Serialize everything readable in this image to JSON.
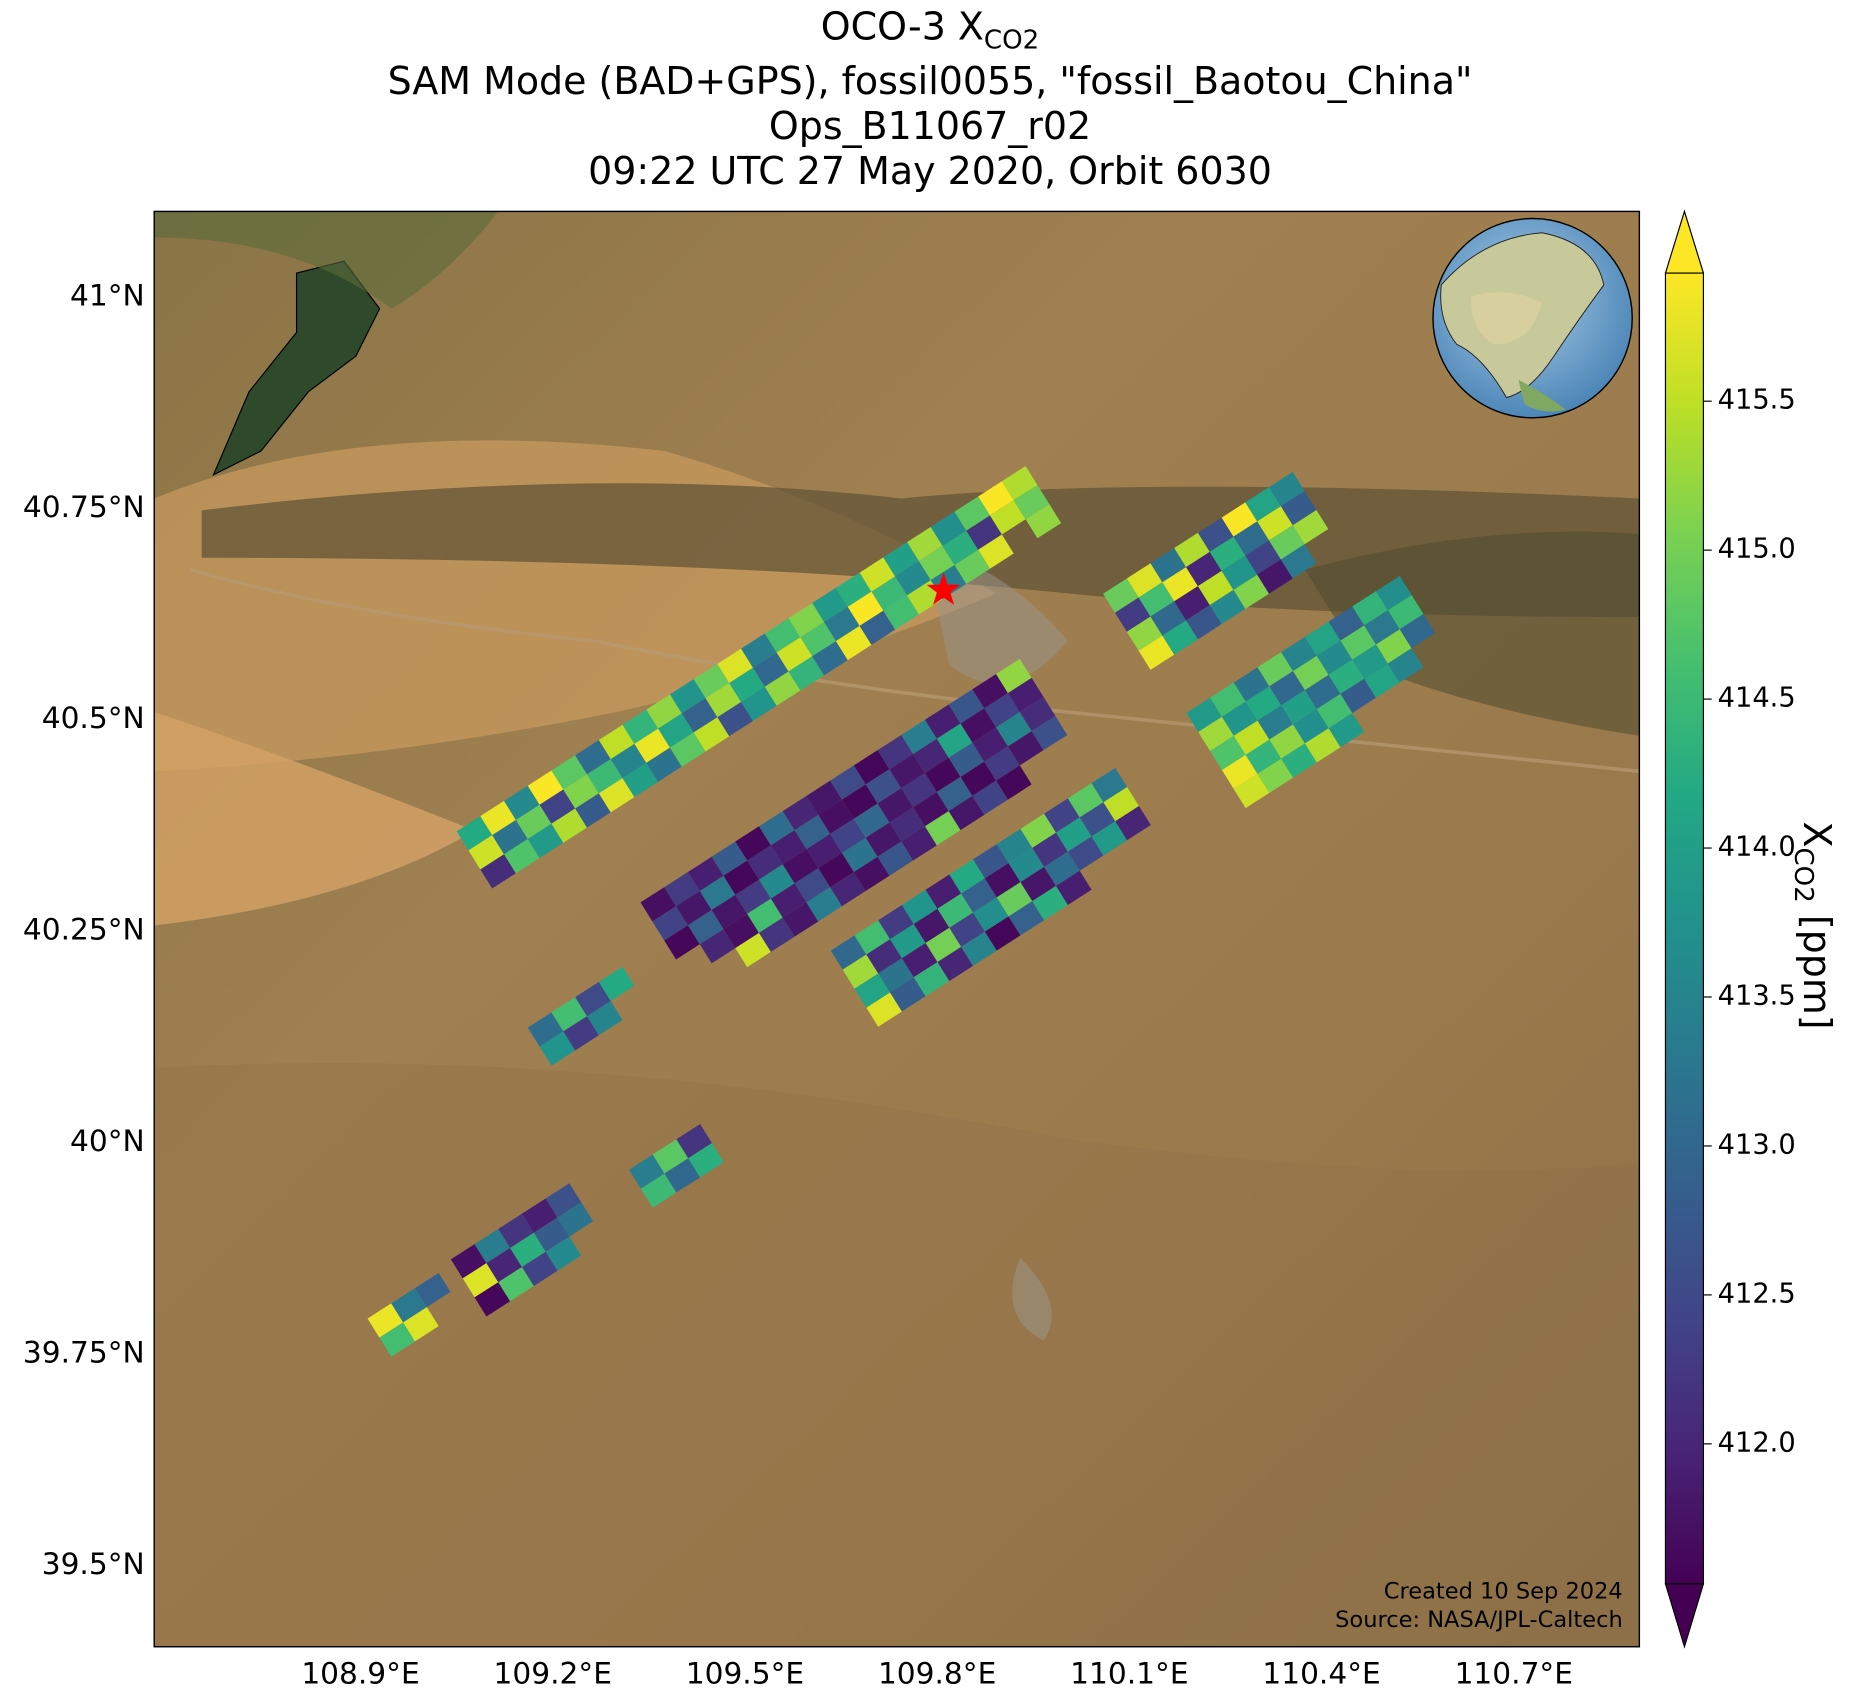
{
  "map": {
    "title": {
      "main": "OCO-3 X",
      "sub": "CO2"
    },
    "subtitle_lines": [
      "SAM Mode (BAD+GPS), fossil0055, \"fossil_Baotou_China\"",
      "Ops_B11067_r02",
      "09:22 UTC 27 May 2020, Orbit 6030"
    ],
    "xlim": [
      108.578,
      110.896
    ],
    "ylim": [
      39.404,
      41.101
    ],
    "xticks": [
      {
        "value": 108.9,
        "label": "108.9°E"
      },
      {
        "value": 109.2,
        "label": "109.2°E"
      },
      {
        "value": 109.5,
        "label": "109.5°E"
      },
      {
        "value": 109.8,
        "label": "109.8°E"
      },
      {
        "value": 110.1,
        "label": "110.1°E"
      },
      {
        "value": 110.4,
        "label": "110.4°E"
      },
      {
        "value": 110.7,
        "label": "110.7°E"
      }
    ],
    "yticks": [
      {
        "value": 39.5,
        "label": "39.5°N"
      },
      {
        "value": 39.75,
        "label": "39.75°N"
      },
      {
        "value": 40,
        "label": "40°N"
      },
      {
        "value": 40.25,
        "label": "40.25°N"
      },
      {
        "value": 40.5,
        "label": "40.5°N"
      },
      {
        "value": 40.75,
        "label": "40.75°N"
      },
      {
        "value": 41,
        "label": "41°N"
      }
    ],
    "grid": true,
    "colormap": "viridis",
    "colorbar": {
      "label": {
        "main": "X",
        "sub": "CO2",
        "unit": " [ppm]"
      },
      "clim": [
        411.53,
        415.93
      ],
      "ticks": [
        {
          "value": 412,
          "label": "412.0"
        },
        {
          "value": 412.5,
          "label": "412.5"
        },
        {
          "value": 413,
          "label": "413.0"
        },
        {
          "value": 413.5,
          "label": "413.5"
        },
        {
          "value": 414,
          "label": "414.0"
        },
        {
          "value": 414.5,
          "label": "414.5"
        },
        {
          "value": 415,
          "label": "415.0"
        },
        {
          "value": 415.5,
          "label": "415.5"
        }
      ]
    },
    "site": {
      "lon": 109.81,
      "lat": 40.653,
      "color": "#ff0000"
    },
    "credits": [
      "Created 10 Sep 2024",
      "Source: NASA/JPL-Caltech"
    ],
    "swaths": [
      {
        "lon": 109.05,
        "lat": 40.368,
        "values": [
          [
            414.2,
            415.8,
            413.6,
            415.9,
            414.8,
            413.1,
            415.5,
            414.4,
            415.2,
            413.8,
            414.9,
            415.7,
            413.4,
            414.6,
            415.1,
            413.9,
            414.3,
            415.6,
            414.0,
            415.3,
            413.7,
            414.8,
            415.9,
            415.4
          ],
          [
            415.6,
            413.2,
            414.9,
            412.4,
            415.1,
            414.5,
            413.5,
            415.8,
            414.1,
            412.9,
            415.3,
            414.2,
            413.0,
            415.6,
            414.7,
            413.3,
            415.9,
            414.5,
            413.6,
            415.0,
            414.3,
            412.2,
            415.5,
            414.9
          ],
          [
            412.1,
            414.7,
            413.9,
            415.4,
            412.8,
            415.7,
            414.0,
            413.2,
            414.8,
            415.5,
            412.6,
            413.8,
            415.2,
            414.4,
            413.1,
            415.8,
            412.9,
            414.6,
            415.4,
            413.4,
            414.9,
            415.7,
            null,
            415.2
          ]
        ]
      },
      {
        "lon": 109.337,
        "lat": 40.284,
        "values": [
          [
            411.7,
            412.3,
            411.9,
            412.8,
            411.6,
            413.1,
            412.0,
            411.8,
            412.5,
            411.6,
            412.2,
            413.4,
            411.9,
            412.7,
            411.7,
            415.2
          ],
          [
            412.4,
            411.8,
            413.3,
            411.6,
            412.1,
            411.9,
            412.9,
            411.7,
            411.6,
            412.6,
            411.8,
            412.0,
            414.1,
            411.7,
            412.4,
            411.9
          ],
          [
            411.6,
            412.9,
            411.8,
            412.3,
            413.6,
            411.7,
            411.9,
            412.4,
            413.0,
            411.8,
            412.2,
            411.6,
            412.8,
            411.9,
            413.5,
            412.1
          ],
          [
            null,
            412.0,
            411.7,
            414.6,
            411.9,
            412.5,
            411.6,
            413.2,
            411.8,
            412.1,
            411.7,
            412.9,
            411.6,
            412.3,
            411.8,
            412.6
          ],
          [
            null,
            null,
            415.6,
            412.2,
            411.8,
            413.4,
            412.0,
            411.7,
            412.7,
            411.9,
            415.0,
            411.8,
            412.4,
            411.6,
            null,
            null
          ]
        ]
      },
      {
        "lon": 109.634,
        "lat": 40.227,
        "values": [
          [
            413.0,
            414.6,
            412.3,
            413.8,
            411.9,
            414.2,
            412.7,
            413.5,
            415.1,
            412.4,
            414.8,
            413.3
          ],
          [
            415.3,
            412.1,
            413.9,
            411.8,
            414.5,
            412.9,
            411.7,
            413.6,
            412.2,
            414.0,
            412.6,
            415.5
          ],
          [
            414.1,
            413.2,
            411.9,
            415.0,
            412.4,
            413.7,
            414.9,
            411.8,
            413.1,
            412.5,
            413.9,
            412.0
          ],
          [
            415.7,
            412.8,
            414.4,
            412.0,
            413.5,
            411.6,
            412.9,
            414.3,
            411.9,
            null,
            null,
            null
          ]
        ]
      },
      {
        "lon": 110.059,
        "lat": 40.649,
        "values": [
          [
            414.9,
            415.7,
            413.2,
            415.4,
            412.6,
            415.9,
            414.1,
            413.5
          ],
          [
            412.3,
            414.6,
            415.8,
            412.0,
            414.3,
            413.1,
            415.6,
            412.8
          ],
          [
            415.2,
            413.0,
            411.9,
            415.5,
            413.8,
            412.4,
            414.9,
            415.3
          ],
          [
            415.8,
            414.2,
            412.7,
            413.6,
            415.1,
            411.8,
            413.3,
            null
          ]
        ]
      },
      {
        "lon": 110.189,
        "lat": 40.508,
        "values": [
          [
            413.9,
            414.6,
            413.2,
            414.9,
            413.5,
            414.1,
            412.9,
            414.4,
            413.7
          ],
          [
            415.3,
            413.8,
            414.2,
            413.0,
            415.0,
            413.6,
            414.8,
            413.3,
            414.5
          ],
          [
            414.7,
            415.5,
            413.4,
            414.0,
            413.1,
            414.3,
            413.9,
            415.1,
            413.0
          ],
          [
            415.8,
            414.4,
            415.2,
            413.7,
            414.6,
            412.8,
            414.1,
            413.5,
            null
          ],
          [
            415.6,
            415.1,
            414.3,
            415.4,
            413.9,
            null,
            null,
            null,
            null
          ]
        ]
      },
      {
        "lon": 109.161,
        "lat": 40.136,
        "values": [
          [
            413.1,
            414.6,
            412.5,
            414.2
          ],
          [
            413.8,
            412.3,
            413.5,
            null
          ]
        ]
      },
      {
        "lon": 109.041,
        "lat": 39.862,
        "values": [
          [
            411.7,
            413.4,
            412.2,
            411.9,
            412.6
          ],
          [
            415.7,
            412.0,
            414.3,
            412.8,
            413.2
          ],
          [
            411.6,
            414.7,
            412.4,
            413.6,
            null
          ]
        ]
      },
      {
        "lon": 108.911,
        "lat": 39.792,
        "values": [
          [
            415.8,
            413.3,
            412.9
          ],
          [
            414.6,
            415.7,
            null
          ]
        ]
      },
      {
        "lon": 109.319,
        "lat": 39.968,
        "values": [
          [
            413.4,
            414.8,
            412.2
          ],
          [
            414.5,
            413.0,
            414.3
          ]
        ]
      }
    ]
  }
}
